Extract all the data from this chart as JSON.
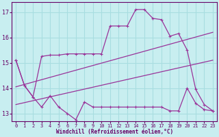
{
  "xlabel": "Windchill (Refroidissement éolien,°C)",
  "bg_color": "#c8eef0",
  "grid_color": "#a8dde0",
  "line_color": "#993399",
  "xlim": [
    -0.5,
    23.5
  ],
  "ylim": [
    12.7,
    17.4
  ],
  "yticks": [
    13,
    14,
    15,
    16,
    17
  ],
  "xticks": [
    0,
    1,
    2,
    3,
    4,
    5,
    6,
    7,
    8,
    9,
    10,
    11,
    12,
    13,
    14,
    15,
    16,
    17,
    18,
    19,
    20,
    21,
    22,
    23
  ],
  "series1_x": [
    0,
    1,
    2,
    3,
    4,
    5,
    6,
    7,
    8,
    9,
    10,
    11,
    12,
    13,
    14,
    15,
    16,
    17,
    18,
    19,
    20,
    21,
    22,
    23
  ],
  "series1_y": [
    15.1,
    14.1,
    13.65,
    13.25,
    13.7,
    13.25,
    13.0,
    12.75,
    13.45,
    13.25,
    13.25,
    13.25,
    13.25,
    13.25,
    13.25,
    13.25,
    13.25,
    13.25,
    13.1,
    13.1,
    14.0,
    13.4,
    13.15,
    13.1
  ],
  "series2_x": [
    0,
    23
  ],
  "series2_y": [
    14.05,
    16.2
  ],
  "series3_x": [
    0,
    23
  ],
  "series3_y": [
    13.35,
    15.1
  ],
  "series4_x": [
    0,
    1,
    2,
    3,
    4,
    5,
    6,
    7,
    8,
    9,
    10,
    11,
    12,
    13,
    14,
    15,
    16,
    17,
    18,
    19,
    20,
    21,
    22,
    23
  ],
  "series4_y": [
    15.1,
    14.1,
    13.65,
    15.25,
    15.3,
    15.3,
    15.35,
    15.35,
    15.35,
    15.35,
    15.35,
    16.45,
    16.45,
    16.45,
    17.1,
    17.1,
    16.75,
    16.7,
    16.05,
    16.15,
    15.5,
    13.95,
    13.35,
    13.1
  ]
}
